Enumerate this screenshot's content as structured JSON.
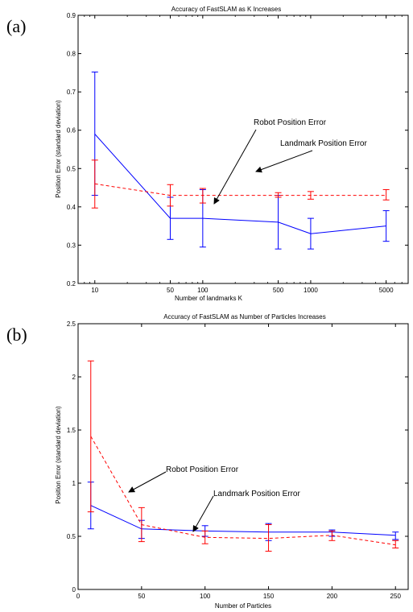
{
  "chart_data": [
    {
      "panel_label": "(a)",
      "type": "line",
      "title": "Accuracy of FastSLAM as K Increases",
      "xlabel": "Number of landmarks K",
      "ylabel": "Position Error (standard deviation)",
      "xscale": "log",
      "xlim": [
        7,
        8000
      ],
      "ylim": [
        0.2,
        0.9
      ],
      "xticks": [
        10,
        50,
        100,
        500,
        1000,
        5000
      ],
      "xticklabels": [
        "10",
        "50",
        "100",
        "500",
        "1000",
        "5000"
      ],
      "yticks": [
        0.2,
        0.3,
        0.4,
        0.5,
        0.6,
        0.7,
        0.8,
        0.9
      ],
      "yticklabels": [
        "0.2",
        "0.3",
        "0.4",
        "0.5",
        "0.6",
        "0.7",
        "0.8",
        "0.9"
      ],
      "series": [
        {
          "color": "#0000ff",
          "style": "solid",
          "x": [
            10,
            50,
            100,
            500,
            1000,
            5000
          ],
          "y": [
            0.59,
            0.37,
            0.37,
            0.36,
            0.33,
            0.35
          ],
          "err_low": [
            0.43,
            0.315,
            0.295,
            0.29,
            0.29,
            0.31
          ],
          "err_high": [
            0.752,
            0.425,
            0.445,
            0.43,
            0.37,
            0.39
          ]
        },
        {
          "color": "#ff0000",
          "style": "dashed",
          "x": [
            10,
            50,
            100,
            500,
            1000,
            5000
          ],
          "y": [
            0.46,
            0.43,
            0.43,
            0.43,
            0.43,
            0.43
          ],
          "err_low": [
            0.397,
            0.402,
            0.41,
            0.425,
            0.42,
            0.418
          ],
          "err_high": [
            0.522,
            0.458,
            0.448,
            0.437,
            0.44,
            0.445
          ]
        }
      ],
      "annotations": [
        {
          "text": "Robot Position Error",
          "target_x": 120,
          "target_y": 0.37
        },
        {
          "text": "Landmark Position Error",
          "target_x": 220,
          "target_y": 0.43
        }
      ]
    },
    {
      "panel_label": "(b)",
      "type": "line",
      "title": "Accuracy of FastSLAM as Number of Particles Increases",
      "xlabel": "Number of Particles",
      "ylabel": "Position Error (standard deviation)",
      "xscale": "linear",
      "xlim": [
        0,
        260
      ],
      "ylim": [
        0,
        2.5
      ],
      "xticks": [
        0,
        50,
        100,
        150,
        200,
        250
      ],
      "xticklabels": [
        "0",
        "50",
        "100",
        "150",
        "200",
        "250"
      ],
      "yticks": [
        0,
        0.5,
        1,
        1.5,
        2,
        2.5
      ],
      "yticklabels": [
        "0",
        "0.5",
        "1",
        "1.5",
        "2",
        "2.5"
      ],
      "series": [
        {
          "color": "#0000ff",
          "style": "solid",
          "x": [
            10,
            50,
            100,
            150,
            200,
            250
          ],
          "y": [
            0.79,
            0.57,
            0.55,
            0.54,
            0.54,
            0.51
          ],
          "err_low": [
            0.57,
            0.48,
            0.5,
            0.46,
            0.5,
            0.47
          ],
          "err_high": [
            1.01,
            0.65,
            0.6,
            0.62,
            0.56,
            0.54
          ]
        },
        {
          "color": "#ff0000",
          "style": "dashed",
          "x": [
            10,
            50,
            100,
            150,
            200,
            250
          ],
          "y": [
            1.44,
            0.61,
            0.49,
            0.48,
            0.51,
            0.42
          ],
          "err_low": [
            0.73,
            0.45,
            0.43,
            0.36,
            0.46,
            0.39
          ],
          "err_high": [
            2.15,
            0.77,
            0.55,
            0.61,
            0.55,
            0.46
          ]
        }
      ],
      "annotations": [
        {
          "text": "Robot Position Error",
          "target_x": 38,
          "target_y": 0.88
        },
        {
          "text": "Landmark Position Error",
          "target_x": 88,
          "target_y": 0.52
        }
      ]
    }
  ]
}
